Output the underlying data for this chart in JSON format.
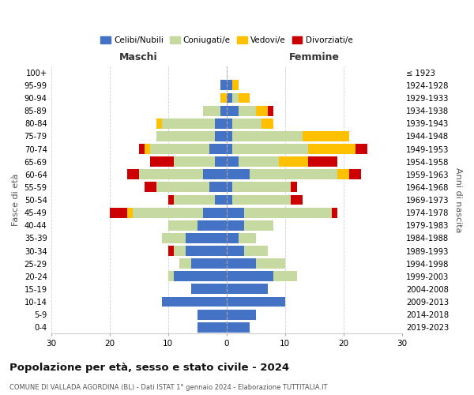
{
  "age_groups": [
    "0-4",
    "5-9",
    "10-14",
    "15-19",
    "20-24",
    "25-29",
    "30-34",
    "35-39",
    "40-44",
    "45-49",
    "50-54",
    "55-59",
    "60-64",
    "65-69",
    "70-74",
    "75-79",
    "80-84",
    "85-89",
    "90-94",
    "95-99",
    "100+"
  ],
  "birth_years": [
    "2019-2023",
    "2014-2018",
    "2009-2013",
    "2004-2008",
    "1999-2003",
    "1994-1998",
    "1989-1993",
    "1984-1988",
    "1979-1983",
    "1974-1978",
    "1969-1973",
    "1964-1968",
    "1959-1963",
    "1954-1958",
    "1949-1953",
    "1944-1948",
    "1939-1943",
    "1934-1938",
    "1929-1933",
    "1924-1928",
    "≤ 1923"
  ],
  "colors": {
    "celibe": "#4472c4",
    "coniugato": "#c5d9a0",
    "vedovo": "#ffc000",
    "divorziato": "#cc0000"
  },
  "maschi": {
    "celibe": [
      5,
      5,
      11,
      6,
      9,
      6,
      7,
      7,
      5,
      4,
      2,
      3,
      4,
      2,
      3,
      2,
      2,
      1,
      0,
      1,
      0
    ],
    "coniugato": [
      0,
      0,
      0,
      0,
      1,
      2,
      2,
      4,
      5,
      12,
      7,
      9,
      11,
      7,
      10,
      10,
      9,
      3,
      0,
      0,
      0
    ],
    "vedovo": [
      0,
      0,
      0,
      0,
      0,
      0,
      0,
      0,
      0,
      1,
      0,
      0,
      0,
      0,
      1,
      0,
      1,
      0,
      1,
      0,
      0
    ],
    "divorziato": [
      0,
      0,
      0,
      0,
      0,
      0,
      1,
      0,
      0,
      3,
      1,
      2,
      2,
      4,
      1,
      0,
      0,
      0,
      0,
      0,
      0
    ]
  },
  "femmine": {
    "nubile": [
      4,
      5,
      10,
      7,
      8,
      5,
      3,
      2,
      3,
      3,
      1,
      1,
      4,
      2,
      1,
      1,
      1,
      2,
      1,
      1,
      0
    ],
    "coniugata": [
      0,
      0,
      0,
      0,
      4,
      5,
      4,
      3,
      5,
      15,
      10,
      10,
      15,
      7,
      13,
      12,
      5,
      3,
      1,
      0,
      0
    ],
    "vedova": [
      0,
      0,
      0,
      0,
      0,
      0,
      0,
      0,
      0,
      0,
      0,
      0,
      2,
      5,
      8,
      8,
      2,
      2,
      2,
      1,
      0
    ],
    "divorziata": [
      0,
      0,
      0,
      0,
      0,
      0,
      0,
      0,
      0,
      1,
      2,
      1,
      2,
      5,
      2,
      0,
      0,
      1,
      0,
      0,
      0
    ]
  },
  "xlim": 30,
  "title": "Popolazione per età, sesso e stato civile - 2024",
  "subtitle": "COMUNE DI VALLADA AGORDINA (BL) - Dati ISTAT 1° gennaio 2024 - Elaborazione TUTTITALIA.IT",
  "ylabel_left": "Fasce di età",
  "ylabel_right": "Anni di nascita",
  "xlabel_left": "Maschi",
  "xlabel_right": "Femmine",
  "legend_labels": [
    "Celibi/Nubili",
    "Coniugati/e",
    "Vedovi/e",
    "Divorziati/e"
  ],
  "bg_color": "#ffffff",
  "grid_color": "#cccccc"
}
